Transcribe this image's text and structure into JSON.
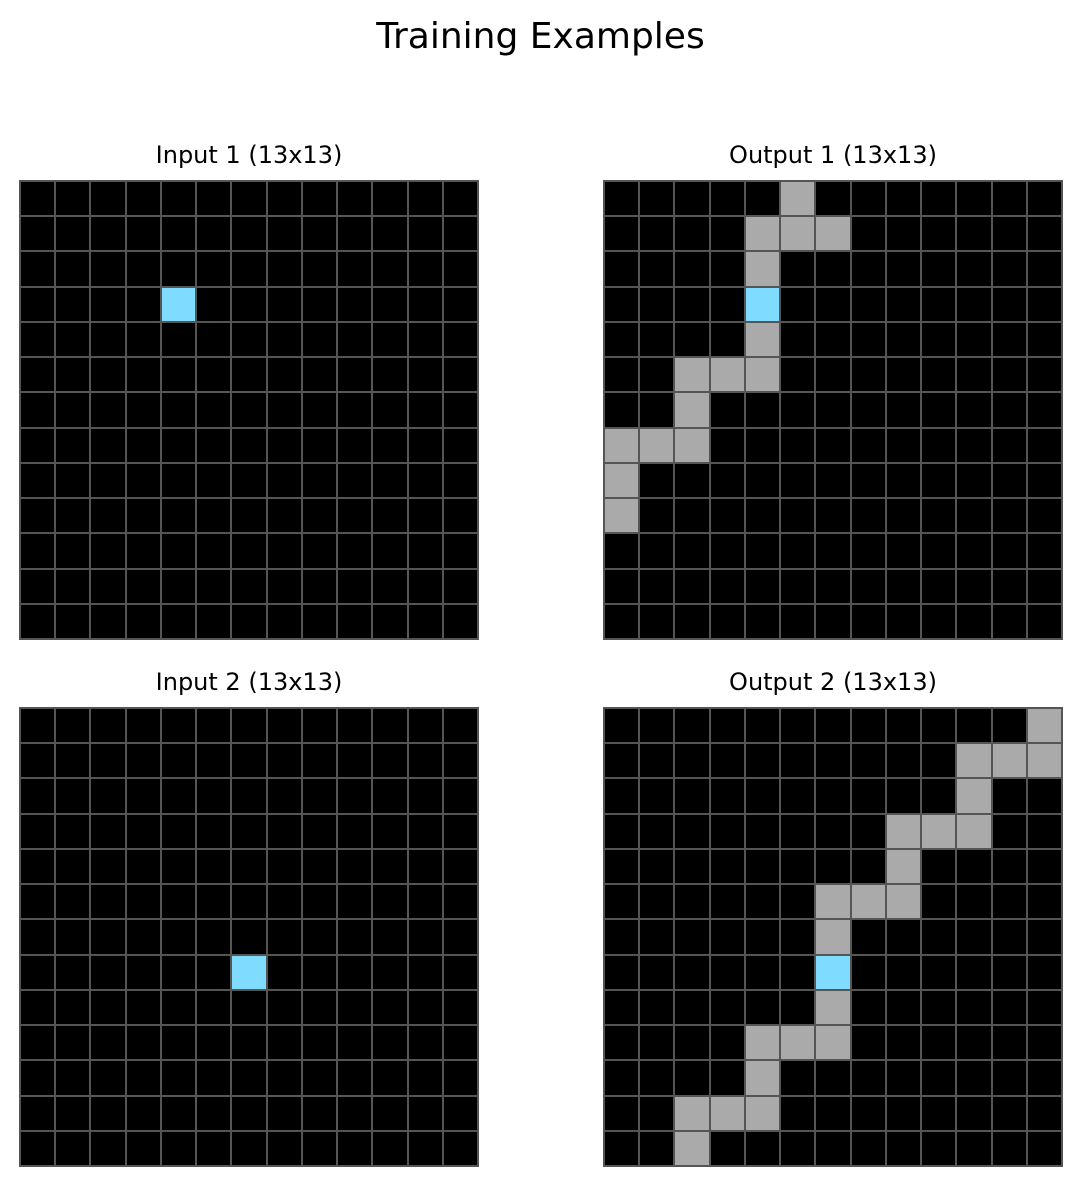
{
  "title": "Training Examples",
  "colors": {
    "0": "#000000",
    "5": "#aaaaaa",
    "8": "#7fdbff",
    "grid_line": "#555555"
  },
  "panels": [
    {
      "title": "Input 1 (13x13)",
      "rows": [
        "0000000000000",
        "0000000000000",
        "0000000000000",
        "0000800000000",
        "0000000000000",
        "0000000000000",
        "0000000000000",
        "0000000000000",
        "0000000000000",
        "0000000000000",
        "0000000000000",
        "0000000000000",
        "0000000000000"
      ]
    },
    {
      "title": "Output 1 (13x13)",
      "rows": [
        "0000050000000",
        "0000555000000",
        "0000500000000",
        "0000800000000",
        "0000500000000",
        "0055500000000",
        "0050000000000",
        "5550000000000",
        "5000000000000",
        "5000000000000",
        "0000000000000",
        "0000000000000",
        "0000000000000"
      ]
    },
    {
      "title": "Input 2 (13x13)",
      "rows": [
        "0000000000000",
        "0000000000000",
        "0000000000000",
        "0000000000000",
        "0000000000000",
        "0000000000000",
        "0000000000000",
        "0000008000000",
        "0000000000000",
        "0000000000000",
        "0000000000000",
        "0000000000000",
        "0000000000000"
      ]
    },
    {
      "title": "Output 2 (13x13)",
      "rows": [
        "0000000000005",
        "0000000000555",
        "0000000000500",
        "0000000055500",
        "0000000050000",
        "0000005550000",
        "0000005000000",
        "0000008000000",
        "0000005000000",
        "0000555000000",
        "0000500000000",
        "0055500000000",
        "0050000000000"
      ]
    }
  ]
}
